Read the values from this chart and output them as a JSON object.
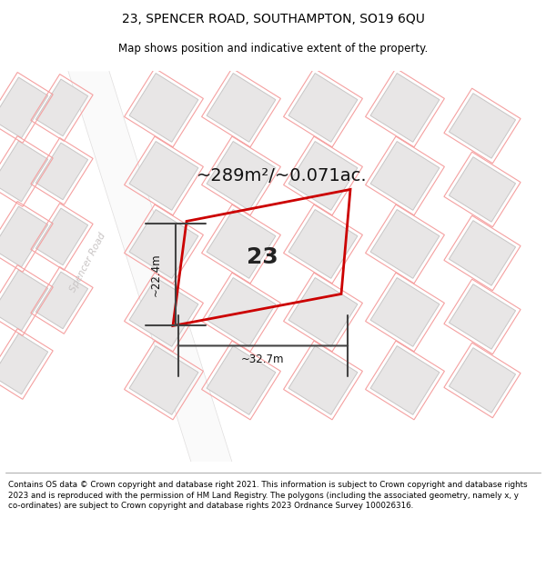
{
  "title": "23, SPENCER ROAD, SOUTHAMPTON, SO19 6QU",
  "subtitle": "Map shows position and indicative extent of the property.",
  "area_text": "~289m²/~0.071ac.",
  "number_label": "23",
  "dim_width": "~32.7m",
  "dim_height": "~22.4m",
  "plot_outline_color": "#cc0000",
  "road_label": "Spencer Road",
  "footer_text": "Contains OS data © Crown copyright and database right 2021. This information is subject to Crown copyright and database rights 2023 and is reproduced with the permission of HM Land Registry. The polygons (including the associated geometry, namely x, y co-ordinates) are subject to Crown copyright and database rights 2023 Ordnance Survey 100026316.",
  "map_bg": "#f5f3f3",
  "building_fill": "#e8e6e6",
  "building_edge": "#c8c6c6",
  "plot_fill": "#f0eeee",
  "boundary_color": "#f5a0a0",
  "dim_color": "#444444",
  "road_fill": "#fafafa",
  "road_edge": "#e0dede"
}
